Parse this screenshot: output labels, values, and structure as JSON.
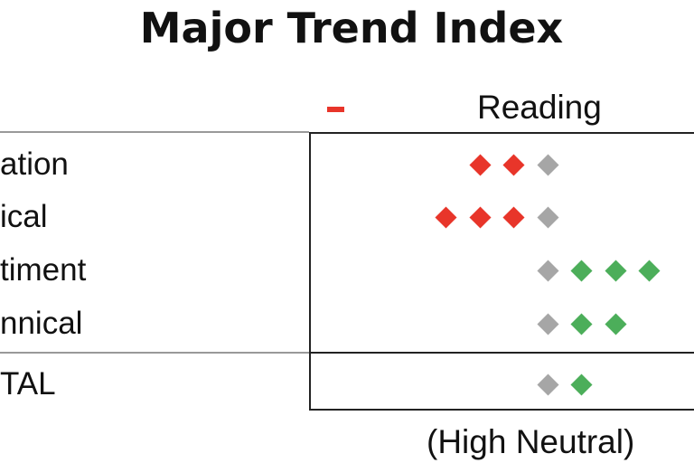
{
  "title": "Major Trend Index",
  "column_header": "Reading",
  "negative_marker": "-",
  "colors": {
    "negative": "#e8352a",
    "neutral": "#a6a6a6",
    "positive": "#4cae5a"
  },
  "rows": [
    {
      "label": "ation",
      "reading": -2
    },
    {
      "label": "ical",
      "reading": -3
    },
    {
      "label": "timent",
      "reading": 3
    },
    {
      "label": "nnical",
      "reading": 2
    },
    {
      "label": "TAL",
      "reading": 1
    }
  ],
  "summary": "(High Neutral)"
}
